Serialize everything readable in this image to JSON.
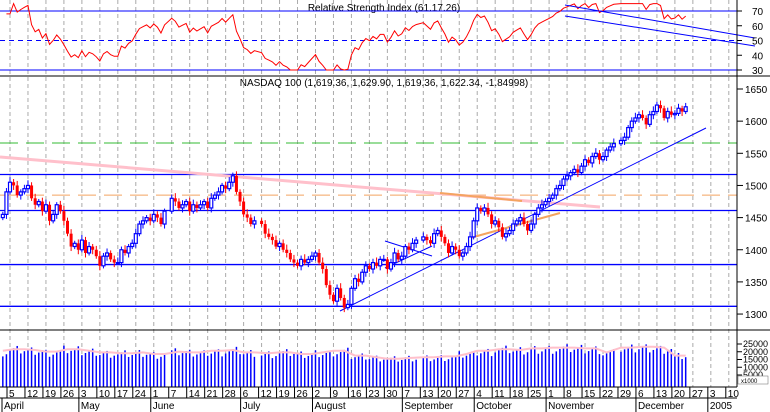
{
  "chart_data": {
    "type": "candlestick",
    "title": "NASDAQ 100 (1,619.36, 1,629.90, 1,619.36, 1,622.34, -1.84998)",
    "rsi_title": "Relative Strength Index (61.17.26)",
    "rsi_ticks": [
      "70",
      "60",
      "50",
      "40",
      "30"
    ],
    "rsi_levels": [
      70,
      50,
      30
    ],
    "price_ylim": [
      1280,
      1665
    ],
    "price_ticks": [
      "1650",
      "1600",
      "1550",
      "1500",
      "1450",
      "1400",
      "1350",
      "1300"
    ],
    "volume_ticks": [
      "25000",
      "20000",
      "15000",
      "10000",
      "5000"
    ],
    "volume_unit": "x1000",
    "horizontal_lines": [
      1517,
      1461,
      1377,
      1312
    ],
    "green_dashed_level": 1566,
    "orange_dashed_level": 1485,
    "week_labels": [
      "5",
      "12",
      "19",
      "26",
      "3",
      "10",
      "17",
      "24",
      "1",
      "7",
      "14",
      "21",
      "28",
      "6",
      "12",
      "19",
      "26",
      "2",
      "9",
      "16",
      "23",
      "30",
      "7",
      "13",
      "20",
      "27",
      "4",
      "11",
      "18",
      "25",
      "1",
      "8",
      "15",
      "22",
      "29",
      "6",
      "13",
      "20",
      "27",
      "3",
      "10"
    ],
    "month_labels": [
      "April",
      "May",
      "June",
      "July",
      "August",
      "September",
      "October",
      "November",
      "December",
      "2005"
    ],
    "month_week_index": [
      0,
      4,
      8,
      13,
      17,
      22,
      26,
      30,
      35,
      39
    ],
    "weekly_closes": [
      [
        1455,
        1490
      ],
      [
        1505,
        1500,
        1485,
        1490,
        1495
      ],
      [
        1500,
        1480,
        1470,
        1475,
        1460
      ],
      [
        1470,
        1445,
        1455,
        1470,
        1460
      ],
      [
        1445,
        1425,
        1405,
        1410,
        1400
      ],
      [
        1415,
        1395,
        1405,
        1400,
        1390
      ],
      [
        1375,
        1390,
        1395,
        1385,
        1380
      ],
      [
        1380,
        1400,
        1395,
        1405,
        1410
      ],
      [
        1425,
        1440,
        1445,
        1450,
        1445
      ],
      [
        1455,
        1450,
        1440,
        1460
      ],
      [
        1480,
        1475,
        1465,
        1470,
        1475
      ],
      [
        1460,
        1470,
        1465,
        1470,
        1475
      ],
      [
        1465,
        1480,
        1485,
        1490,
        1500
      ],
      [
        1495,
        1505,
        1515,
        1490,
        1475
      ],
      [
        1455,
        1450,
        1440,
        1445
      ],
      [
        1440,
        1425,
        1420,
        1415,
        1405
      ],
      [
        1410,
        1400,
        1395,
        1385,
        1380
      ],
      [
        1375,
        1385,
        1380,
        1385,
        1390
      ],
      [
        1395,
        1380,
        1370,
        1345,
        1330
      ],
      [
        1320,
        1340,
        1325,
        1310,
        1315
      ],
      [
        1340,
        1355,
        1350,
        1365,
        1375
      ],
      [
        1370,
        1380,
        1375,
        1385,
        1385
      ],
      [
        1370,
        1380,
        1395,
        1385,
        1390
      ],
      [
        1405,
        1400,
        1410,
        1415
      ],
      [
        1420,
        1415,
        1410,
        1425,
        1430
      ],
      [
        1420,
        1410,
        1395,
        1405,
        1400
      ],
      [
        1390,
        1395,
        1405,
        1420,
        1445
      ],
      [
        1465,
        1460,
        1465,
        1455,
        1440
      ],
      [
        1445,
        1435,
        1420,
        1425,
        1430
      ],
      [
        1440,
        1445,
        1450,
        1440,
        1430
      ],
      [
        1440,
        1455,
        1465,
        1470,
        1475
      ],
      [
        1480,
        1485,
        1495,
        1500,
        1510
      ],
      [
        1515,
        1520,
        1525,
        1520,
        1530
      ],
      [
        1540,
        1535,
        1545,
        1550,
        1540
      ],
      [
        1545,
        1555,
        1560,
        1565
      ],
      [
        1570,
        1575,
        1590,
        1600,
        1605
      ],
      [
        1610,
        1605,
        1595,
        1610,
        1615
      ],
      [
        1625,
        1620,
        1605,
        1615,
        1610
      ],
      [
        1612,
        1620,
        1615,
        1622.34
      ]
    ],
    "weekly_volume": [
      20000,
      21000,
      20500,
      19500,
      21000,
      20000,
      19000,
      18500,
      19000,
      18000,
      19500,
      19000,
      20000,
      20500,
      19000,
      18500,
      19000,
      18000,
      19000,
      20000,
      17000,
      16000,
      15000,
      15500,
      16000,
      16500,
      18000,
      20000,
      21000,
      20500,
      21500,
      22000,
      22000,
      21500,
      19000,
      22000,
      22500,
      22000,
      17000
    ],
    "colors": {
      "up": "#0000ff",
      "down": "#ff0000",
      "rsi": "#ff0000",
      "level": "#0000ff",
      "trend": "#0000ff",
      "pink": "#ffc0cb",
      "orange": "#f4a460",
      "green": "#33bb33",
      "grid": "#aaaaaa"
    }
  }
}
